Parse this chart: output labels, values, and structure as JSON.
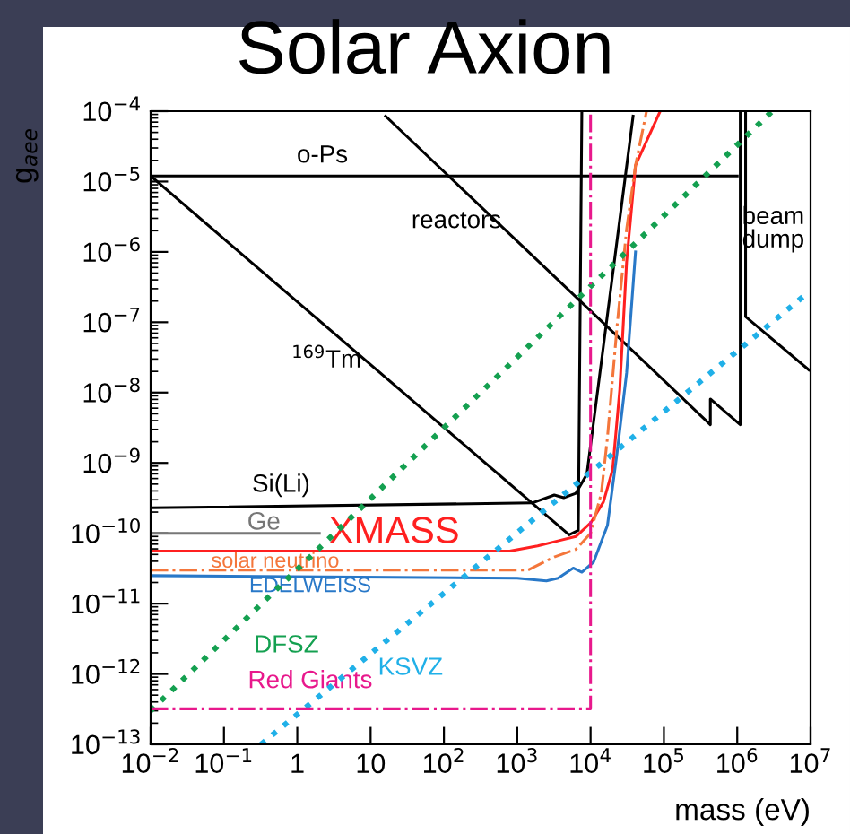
{
  "chart_data": {
    "type": "line",
    "title": "Solar Axion",
    "xlabel": "mass (eV)",
    "ylabel": "g$_{aee}$",
    "log": "xy",
    "grid": false,
    "marker": "none",
    "xlim": [
      0.01,
      10000000
    ],
    "ylim": [
      1e-13,
      0.0001
    ],
    "xticks": [
      {
        "value": 0.01,
        "label": "10$^{−2}$"
      },
      {
        "value": 0.1,
        "label": "10$^{−1}$"
      },
      1,
      10,
      {
        "value": 100,
        "label": "10$^{2}$"
      },
      {
        "value": 1000,
        "label": "10$^{3}$"
      },
      {
        "value": 10000,
        "label": "10$^{4}$"
      },
      {
        "value": 100000,
        "label": "10$^{5}$"
      },
      {
        "value": 1000000,
        "label": "10$^{6}$"
      },
      {
        "value": 10000000,
        "label": "10$^{7}$"
      }
    ],
    "yticks": [
      {
        "value": 1e-13,
        "label": "10$^{−13}$"
      },
      {
        "value": 1e-12,
        "label": "10$^{−12}$"
      },
      {
        "value": 1e-11,
        "label": "10$^{−11}$"
      },
      {
        "value": 1e-10,
        "label": "10$^{−10}$"
      },
      {
        "value": 1e-09,
        "label": "10$^{−9}$"
      },
      {
        "value": 1e-08,
        "label": "10$^{−8}$"
      },
      {
        "value": 1e-07,
        "label": "10$^{−7}$"
      },
      {
        "value": 1e-06,
        "label": "10$^{−6}$"
      },
      {
        "value": 1e-05,
        "label": "10$^{−5}$"
      },
      {
        "value": 0.0001,
        "label": "10$^{−4}$"
      }
    ],
    "series": [
      {
        "name": "o-Ps",
        "color": "#000000",
        "line_style": "solid",
        "x": [
          0.01,
          1000000
        ],
        "values": [
          1.2e-05,
          1.2e-05
        ]
      },
      {
        "name": "reactors",
        "color": "#000000",
        "line_style": "solid",
        "x": [
          16,
          430000,
          430000,
          1100000,
          1100000
        ],
        "values": [
          8.5e-05,
          3.5e-09,
          8.1e-09,
          3.5e-09,
          0.0001
        ]
      },
      {
        "name": "beam\ndump",
        "color": "#000000",
        "line_style": "solid",
        "x": [
          1300000,
          1300000,
          9500000
        ],
        "values": [
          0.0001,
          1.2e-07,
          2.1e-08
        ]
      },
      {
        "name": "$^{169}$Tm",
        "color": "#000000",
        "line_style": "solid",
        "x": [
          0.01,
          5100,
          6800,
          7600
        ],
        "values": [
          1.2e-05,
          9.5e-11,
          1.1e-10,
          0.0001
        ]
      },
      {
        "name": "Si(Li)",
        "color": "#000000",
        "line_style": "solid",
        "x": [
          0.01,
          1600,
          3200,
          4300,
          6300,
          8900,
          38000
        ],
        "values": [
          2.3e-10,
          2.7e-10,
          3.5e-10,
          3.2e-10,
          3.7e-10,
          6.9e-10,
          8.5e-05
        ]
      },
      {
        "name": "Ge",
        "color": "#777777",
        "line_style": "solid",
        "x": [
          0.01,
          2.0
        ],
        "values": [
          1e-10,
          1e-10
        ]
      },
      {
        "name": "XMASS",
        "color": "#ff2020",
        "line_style": "solid",
        "x": [
          0.01,
          790,
          1900,
          3600,
          6300,
          10000,
          15000,
          20000,
          25000,
          31000,
          41000,
          89000
        ],
        "values": [
          5.6e-11,
          5.6e-11,
          6.6e-11,
          7.8e-11,
          9e-11,
          1.4e-10,
          2.8e-10,
          8.1e-10,
          1.1e-08,
          7.2e-07,
          1.7e-05,
          0.0001
        ]
      },
      {
        "name": "solar neutrino",
        "color": "#f4763b",
        "line_style": "dashdot",
        "x": [
          0.01,
          1400,
          3200,
          6300,
          10000,
          14000,
          17000,
          23000,
          31000,
          41000,
          58000
        ],
        "values": [
          3e-11,
          3e-11,
          4.6e-11,
          5.9e-11,
          1e-10,
          3.7e-10,
          2.3e-09,
          8.9e-08,
          2.1e-06,
          1.7e-05,
          0.0001
        ]
      },
      {
        "name": "EDELWEISS",
        "color": "#2878c8",
        "line_style": "solid",
        "x": [
          0.01,
          1000,
          2500,
          3600,
          5800,
          7600,
          11000,
          17000,
          23000,
          31000,
          41000
        ],
        "values": [
          2.5e-11,
          2.3e-11,
          2.1e-11,
          2.3e-11,
          3.2e-11,
          2.8e-11,
          3.9e-11,
          1.3e-10,
          1.4e-09,
          1.9e-08,
          1e-06
        ]
      },
      {
        "name": "DFSZ",
        "color": "#14a050",
        "line_style": "dotted",
        "x": [
          0.01,
          3000000
        ],
        "values": [
          3e-13,
          0.0001
        ]
      },
      {
        "name": "KSVZ",
        "color": "#20b0e8",
        "line_style": "dotted",
        "x": [
          0.32,
          9500000
        ],
        "values": [
          1e-13,
          2.7e-07
        ]
      },
      {
        "name": "Red Giants",
        "color": "#e8188c",
        "line_style": "dashdot",
        "x": [
          0.01,
          10000,
          10000
        ],
        "values": [
          3.2e-13,
          3.2e-13,
          0.0001
        ]
      }
    ]
  }
}
